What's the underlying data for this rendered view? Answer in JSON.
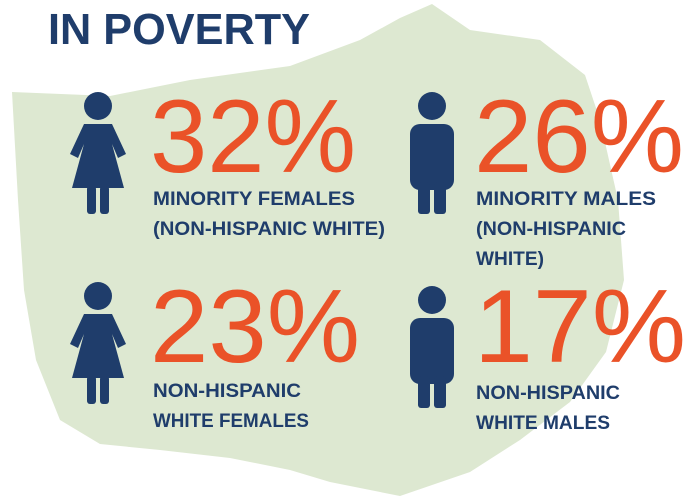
{
  "title": "IN POVERTY",
  "stats": [
    {
      "value": "32%",
      "label": [
        "MINORITY FEMALES",
        "(NON-HISPANIC WHITE)"
      ]
    },
    {
      "value": "26%",
      "label": [
        "MINORITY MALES",
        "(NON-HISPANIC",
        "WHITE)"
      ]
    },
    {
      "value": "23%",
      "label": [
        "NON-HISPANIC",
        "WHITE FEMALES"
      ]
    },
    {
      "value": "17%",
      "label": [
        "NON-HISPANIC",
        "WHITE MALES"
      ]
    }
  ]
}
